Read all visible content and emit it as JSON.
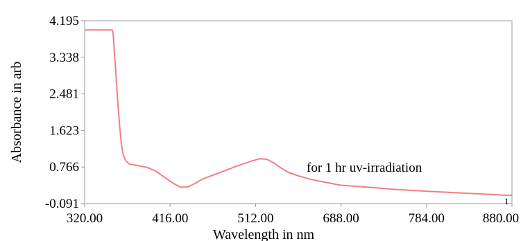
{
  "chart_data": {
    "type": "line",
    "title": "",
    "xlabel": "Wavelength in nm",
    "ylabel": "Absorbance in arb",
    "x_tick_labels": [
      "320.00",
      "416.00",
      "512.00",
      "688.00",
      "784.00",
      "880.00"
    ],
    "y_tick_labels": [
      "4.195",
      "3.338",
      "2.481",
      "1.623",
      "0.766",
      "-0.091"
    ],
    "ylim": [
      -0.091,
      4.195
    ],
    "annotation": "for 1 hr uv-irradiation",
    "end_marker": "1",
    "grid": false,
    "line_color": "#f08080",
    "series": [
      {
        "points": [
          [
            320,
            3.98
          ],
          [
            351,
            3.98
          ],
          [
            352,
            3.9
          ],
          [
            353,
            3.6
          ],
          [
            355,
            3.0
          ],
          [
            357,
            2.35
          ],
          [
            359,
            1.8
          ],
          [
            361,
            1.35
          ],
          [
            363,
            1.08
          ],
          [
            366,
            0.92
          ],
          [
            370,
            0.84
          ],
          [
            380,
            0.8
          ],
          [
            390,
            0.76
          ],
          [
            400,
            0.67
          ],
          [
            410,
            0.52
          ],
          [
            420,
            0.38
          ],
          [
            428,
            0.29
          ],
          [
            436,
            0.3
          ],
          [
            444,
            0.38
          ],
          [
            452,
            0.48
          ],
          [
            462,
            0.56
          ],
          [
            475,
            0.66
          ],
          [
            490,
            0.78
          ],
          [
            505,
            0.89
          ],
          [
            520,
            0.96
          ],
          [
            535,
            0.95
          ],
          [
            550,
            0.86
          ],
          [
            565,
            0.74
          ],
          [
            580,
            0.64
          ],
          [
            600,
            0.56
          ],
          [
            625,
            0.48
          ],
          [
            650,
            0.42
          ],
          [
            688,
            0.34
          ],
          [
            720,
            0.29
          ],
          [
            750,
            0.24
          ],
          [
            784,
            0.2
          ],
          [
            820,
            0.16
          ],
          [
            850,
            0.13
          ],
          [
            880,
            0.1
          ]
        ]
      }
    ]
  }
}
